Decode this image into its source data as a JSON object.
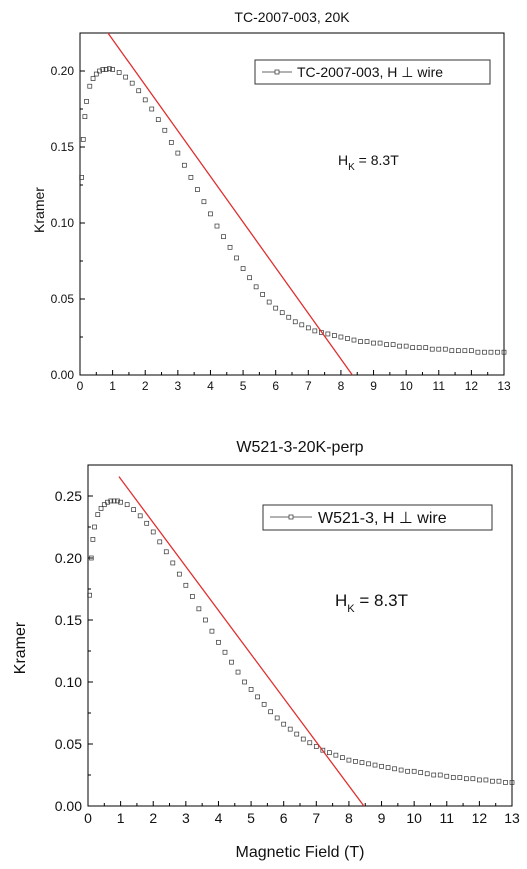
{
  "chart_data": [
    {
      "type": "scatter",
      "title": "TC-2007-003, 20K",
      "xlabel": "",
      "ylabel": "Kramer",
      "xlim": [
        0,
        13
      ],
      "ylim": [
        0,
        0.225
      ],
      "x_ticks": [
        "0",
        "1",
        "2",
        "3",
        "4",
        "5",
        "6",
        "7",
        "8",
        "9",
        "10",
        "11",
        "12",
        "13"
      ],
      "y_ticks": [
        "0.00",
        "0.05",
        "0.10",
        "0.15",
        "0.20"
      ],
      "legend": {
        "label": "TC-2007-003, H ⊥ wire",
        "position": "top-right"
      },
      "annotation": {
        "main": "H",
        "sub": "K",
        "rest": " = 8.3T"
      },
      "series": [
        {
          "name": "TC-2007-003, H ⊥ wire",
          "marker": "open-square",
          "x": [
            0.05,
            0.1,
            0.15,
            0.2,
            0.3,
            0.4,
            0.5,
            0.6,
            0.7,
            0.8,
            0.9,
            1.0,
            1.2,
            1.4,
            1.6,
            1.8,
            2.0,
            2.2,
            2.4,
            2.6,
            2.8,
            3.0,
            3.2,
            3.4,
            3.6,
            3.8,
            4.0,
            4.2,
            4.4,
            4.6,
            4.8,
            5.0,
            5.2,
            5.4,
            5.6,
            5.8,
            6.0,
            6.2,
            6.4,
            6.6,
            6.8,
            7.0,
            7.2,
            7.4,
            7.6,
            7.8,
            8.0,
            8.2,
            8.4,
            8.6,
            8.8,
            9.0,
            9.2,
            9.4,
            9.6,
            9.8,
            10.0,
            10.2,
            10.4,
            10.6,
            10.8,
            11.0,
            11.2,
            11.4,
            11.6,
            11.8,
            12.0,
            12.2,
            12.4,
            12.6,
            12.8,
            13.0
          ],
          "y": [
            0.13,
            0.155,
            0.17,
            0.18,
            0.19,
            0.195,
            0.198,
            0.2,
            0.201,
            0.201,
            0.2015,
            0.201,
            0.199,
            0.196,
            0.192,
            0.187,
            0.181,
            0.175,
            0.168,
            0.161,
            0.153,
            0.146,
            0.138,
            0.13,
            0.122,
            0.114,
            0.106,
            0.098,
            0.091,
            0.084,
            0.077,
            0.07,
            0.064,
            0.058,
            0.053,
            0.048,
            0.044,
            0.041,
            0.038,
            0.035,
            0.033,
            0.031,
            0.029,
            0.028,
            0.027,
            0.026,
            0.025,
            0.024,
            0.023,
            0.022,
            0.022,
            0.021,
            0.021,
            0.02,
            0.02,
            0.019,
            0.019,
            0.018,
            0.018,
            0.018,
            0.017,
            0.017,
            0.017,
            0.016,
            0.016,
            0.016,
            0.016,
            0.015,
            0.015,
            0.015,
            0.015,
            0.015
          ]
        },
        {
          "marker": "line",
          "color": "#e03030",
          "x": [
            0.8,
            8.7
          ],
          "y": [
            0.2267,
            -0.0105
          ]
        }
      ]
    },
    {
      "type": "scatter",
      "title": "W521-3-20K-perp",
      "xlabel": "Magnetic Field (T)",
      "ylabel": "Kramer",
      "xlim": [
        0,
        13
      ],
      "ylim": [
        0,
        0.275
      ],
      "x_ticks": [
        "0",
        "1",
        "2",
        "3",
        "4",
        "5",
        "6",
        "7",
        "8",
        "9",
        "10",
        "11",
        "12",
        "13"
      ],
      "y_ticks": [
        "0.00",
        "0.05",
        "0.10",
        "0.15",
        "0.20",
        "0.25"
      ],
      "legend": {
        "label": "W521-3, H ⊥ wire",
        "position": "top-right"
      },
      "annotation": {
        "main": "H",
        "sub": "K",
        "rest": " = 8.3T"
      },
      "series": [
        {
          "name": "W521-3, H ⊥ wire",
          "marker": "open-square",
          "x": [
            0.05,
            0.1,
            0.15,
            0.2,
            0.3,
            0.4,
            0.5,
            0.6,
            0.7,
            0.8,
            0.9,
            1.0,
            1.2,
            1.4,
            1.6,
            1.8,
            2.0,
            2.2,
            2.4,
            2.6,
            2.8,
            3.0,
            3.2,
            3.4,
            3.6,
            3.8,
            4.0,
            4.2,
            4.4,
            4.6,
            4.8,
            5.0,
            5.2,
            5.4,
            5.6,
            5.8,
            6.0,
            6.2,
            6.4,
            6.6,
            6.8,
            7.0,
            7.2,
            7.4,
            7.6,
            7.8,
            8.0,
            8.2,
            8.4,
            8.6,
            8.8,
            9.0,
            9.2,
            9.4,
            9.6,
            9.8,
            10.0,
            10.2,
            10.4,
            10.6,
            10.8,
            11.0,
            11.2,
            11.4,
            11.6,
            11.8,
            12.0,
            12.2,
            12.4,
            12.6,
            12.8,
            13.0
          ],
          "y": [
            0.17,
            0.2,
            0.215,
            0.225,
            0.235,
            0.24,
            0.243,
            0.245,
            0.246,
            0.246,
            0.246,
            0.245,
            0.243,
            0.239,
            0.234,
            0.228,
            0.221,
            0.213,
            0.205,
            0.196,
            0.187,
            0.178,
            0.169,
            0.159,
            0.15,
            0.141,
            0.132,
            0.124,
            0.116,
            0.108,
            0.1,
            0.094,
            0.088,
            0.082,
            0.076,
            0.071,
            0.066,
            0.062,
            0.058,
            0.054,
            0.051,
            0.048,
            0.045,
            0.043,
            0.041,
            0.039,
            0.037,
            0.036,
            0.035,
            0.034,
            0.033,
            0.032,
            0.031,
            0.03,
            0.029,
            0.028,
            0.028,
            0.027,
            0.026,
            0.025,
            0.025,
            0.024,
            0.023,
            0.023,
            0.022,
            0.022,
            0.021,
            0.021,
            0.02,
            0.02,
            0.019,
            0.019
          ]
        },
        {
          "marker": "line",
          "color": "#e03030",
          "x": [
            0.95,
            8.7
          ],
          "y": [
            0.2656,
            -0.0085
          ]
        }
      ]
    }
  ]
}
